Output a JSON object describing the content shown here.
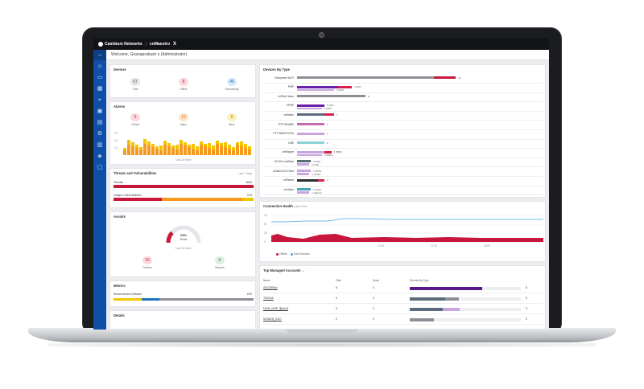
{
  "app": {
    "brand": "Cambium Networks",
    "product": "cnMaestro",
    "product_mark": "X",
    "welcome": "Welcome, Gnanaprakash s (Administrator)"
  },
  "devices": {
    "title": "Devices",
    "stats": [
      {
        "label": "Total",
        "value": "67"
      },
      {
        "label": "Offline",
        "value": "8"
      },
      {
        "label": "Onboarding",
        "value": "46"
      }
    ]
  },
  "alarms": {
    "title": "Alarms",
    "stats": [
      {
        "label": "Critical",
        "value": "0"
      },
      {
        "label": "Major",
        "value": "10"
      },
      {
        "label": "Minor",
        "value": "8"
      }
    ],
    "y_ticks": [
      "20",
      "15",
      "10"
    ],
    "caption": "Last 24 Hours"
  },
  "threats": {
    "title": "Threats and Vulnerabilities",
    "period": "Last 7 Days",
    "rows": [
      {
        "label": "Threats",
        "value": "1653"
      },
      {
        "label": "Unique Vulnerabilities",
        "value": "213"
      }
    ]
  },
  "assists": {
    "title": "Assists",
    "gauge_value": "23%",
    "gauge_label": "Poor",
    "gauge_level": 0.23,
    "caption": "Last 24 Hours",
    "stats": [
      {
        "label": "Failures",
        "value": "16"
      },
      {
        "label": "Network",
        "value": "6"
      }
    ]
  },
  "metrics": {
    "title": "Metrics",
    "row_label": "Recommended Software",
    "row_value": "19%"
  },
  "details": {
    "title": "Details"
  },
  "device_types": {
    "title": "Devices By Type",
    "rows": [
      {
        "label": "Enterprise Wi-Fi",
        "bars": [
          {
            "v": 1.0,
            "c": "#8c8f95"
          },
          {
            "v": 0.16,
            "c": "#c8173c"
          }
        ],
        "value_text": "41"
      },
      {
        "label": "PMP",
        "bars": [
          {
            "v": 0.3,
            "c": "#6a1fa8"
          },
          {
            "v": 0.1,
            "c": "#d9204a"
          }
        ],
        "value_text": "4 (AP)",
        "sub_text": "3 (SM)"
      },
      {
        "label": "cnPilot Home",
        "bars": [
          {
            "v": 0.5,
            "c": "#8c8f95"
          }
        ],
        "value_text": "8"
      },
      {
        "label": "ePMP",
        "bars": [
          {
            "v": 0.2,
            "c": "#6a1fa8"
          }
        ],
        "value_text": "5 (AP)",
        "sub_text": "6 (SM)"
      },
      {
        "label": "cnMatrix",
        "bars": [
          {
            "v": 0.2,
            "c": "#5b6b7b"
          },
          {
            "v": 0.07,
            "c": "#d9204a"
          }
        ],
        "value_text": "7"
      },
      {
        "label": "PTP 820/850",
        "bars": [
          {
            "v": 0.2,
            "c": "#c86ab0"
          }
        ],
        "value_text": "2"
      },
      {
        "label": "PTP 550/670/700",
        "bars": [
          {
            "v": 0.2,
            "c": "#c7a6e0"
          }
        ],
        "value_text": "2"
      },
      {
        "label": "NSE",
        "bars": [
          {
            "v": 0.2,
            "c": "#8ad0d6"
          }
        ],
        "value_text": "2"
      },
      {
        "label": "cnRanger",
        "bars": [
          {
            "v": 0.2,
            "c": "#c7a6e0"
          },
          {
            "v": 0.05,
            "c": "#d9204a"
          }
        ],
        "value_text": "3 (BBU)",
        "sub_text": "5 (RRH)"
      },
      {
        "label": "60 GHz cnWave",
        "bars": [
          {
            "v": 0.1,
            "c": "#5b6b7b"
          }
        ],
        "value_text": "2 (DN)",
        "sub_text": "3 (CN)"
      },
      {
        "label": "cnWave 5G Fixed",
        "bars": [
          {
            "v": 0.1,
            "c": "#c7a6e0"
          }
        ],
        "value_text": "1 (BTS)",
        "sub_text": "3 (CPE)"
      },
      {
        "label": "cnReach",
        "bars": [
          {
            "v": 0.15,
            "c": "#2a2d34"
          },
          {
            "v": 0.05,
            "c": "#d9204a"
          }
        ],
        "value_text": "2"
      },
      {
        "label": "cnVision",
        "bars": [
          {
            "v": 0.1,
            "c": "#4aa3b8"
          }
        ],
        "value_text": "1 (Hub)",
        "sub_text": "1 (Client)"
      }
    ]
  },
  "connection_health": {
    "title": "Connection Health",
    "period": "Last 24 Hrs",
    "y_ticks": [
      "75",
      "50",
      "25",
      "0"
    ],
    "x_ticks": [
      "17:00",
      "17:30",
      "18:00"
    ],
    "legend": [
      {
        "label": "Offline",
        "color": "#c8173c"
      },
      {
        "label": "Total Devices",
        "color": "#4aa3d8"
      }
    ]
  },
  "managed_accounts": {
    "title": "Top Managed Accounts",
    "headers": [
      "Name",
      "Total",
      "Down",
      "Devices By Type"
    ],
    "rows": [
      {
        "name": "A3123Bldu",
        "total": "6",
        "down": "0",
        "count": "6",
        "bars": [
          {
            "v": 0.65,
            "c": "#5a178a"
          }
        ]
      },
      {
        "name": "TNOOA",
        "total": "3",
        "down": "0",
        "count": "3",
        "bars": [
          {
            "v": 0.32,
            "c": "#5b6b7b"
          },
          {
            "v": 0.12,
            "c": "#8c8f95"
          }
        ]
      },
      {
        "name": "NVW_MSP_$[ehH]",
        "total": "3",
        "down": "1",
        "count": "3",
        "bars": [
          {
            "v": 0.3,
            "c": "#5b6b7b"
          },
          {
            "v": 0.15,
            "c": "#c7a6e0"
          }
        ]
      },
      {
        "name": "MONZN_ACC",
        "total": "2",
        "down": "0",
        "count": "2",
        "bars": [
          {
            "v": 0.22,
            "c": "#8c8f95"
          }
        ]
      }
    ]
  },
  "colors": {
    "sidebar": "#0f4fa8",
    "topbar": "#121317",
    "critical": "#c8173c",
    "major": "#f59a1e",
    "minor": "#f2c500"
  },
  "icons": [
    "home-icon",
    "monitor-icon",
    "grid-icon",
    "map-pin-icon",
    "calendar-icon",
    "box-icon",
    "gear-icon",
    "book-icon",
    "shield-icon",
    "doc-icon"
  ]
}
